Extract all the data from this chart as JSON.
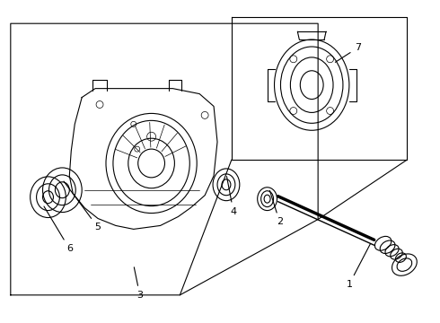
{
  "bg_color": "#ffffff",
  "line_color": "#000000",
  "label_color": "#000000",
  "figsize": [
    4.9,
    3.6
  ],
  "dpi": 100,
  "labels": [
    "1",
    "2",
    "3",
    "4",
    "5",
    "6",
    "7"
  ]
}
